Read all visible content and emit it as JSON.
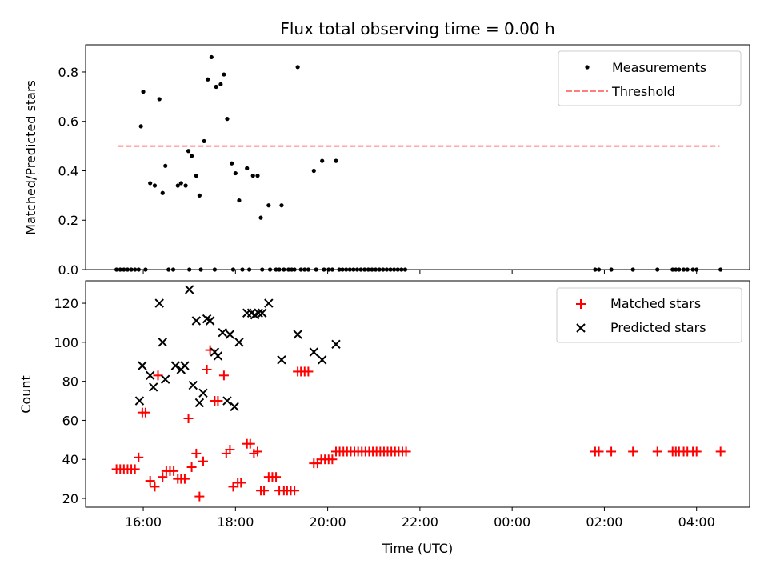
{
  "chart_data": {
    "title": "Flux total observing time = 0.00 h",
    "xlabel": "Time (UTC)",
    "x_ticks": [
      {
        "t": 16.0,
        "label": "16:00"
      },
      {
        "t": 18.0,
        "label": "18:00"
      },
      {
        "t": 20.0,
        "label": "20:00"
      },
      {
        "t": 22.0,
        "label": "22:00"
      },
      {
        "t": 24.0,
        "label": "00:00"
      },
      {
        "t": 26.0,
        "label": "02:00"
      },
      {
        "t": 28.0,
        "label": "04:00"
      }
    ],
    "xlim": [
      14.75,
      29.15
    ],
    "subplots": [
      {
        "type": "scatter",
        "ylabel": "Matched/Predicted stars",
        "ylim": [
          0,
          0.91
        ],
        "y_ticks": [
          0.0,
          0.2,
          0.4,
          0.6,
          0.8
        ],
        "y_tick_labels": [
          "0.0",
          "0.2",
          "0.4",
          "0.6",
          "0.8"
        ],
        "legend": {
          "placement": "upper-right",
          "entries": [
            "Measurements",
            "Threshold"
          ]
        },
        "threshold": {
          "name": "Threshold",
          "value": 0.5,
          "x_range": [
            15.45,
            28.5
          ],
          "color": "#ff7f7f"
        },
        "series": [
          {
            "name": "Measurements",
            "color": "#000000",
            "points": [
              [
                15.95,
                0.58
              ],
              [
                16.0,
                0.72
              ],
              [
                16.15,
                0.35
              ],
              [
                16.25,
                0.34
              ],
              [
                16.35,
                0.69
              ],
              [
                16.42,
                0.31
              ],
              [
                16.48,
                0.42
              ],
              [
                16.75,
                0.34
              ],
              [
                16.82,
                0.35
              ],
              [
                16.92,
                0.34
              ],
              [
                16.98,
                0.48
              ],
              [
                17.05,
                0.46
              ],
              [
                17.15,
                0.38
              ],
              [
                17.22,
                0.3
              ],
              [
                17.32,
                0.52
              ],
              [
                17.4,
                0.77
              ],
              [
                17.48,
                0.86
              ],
              [
                17.58,
                0.74
              ],
              [
                17.68,
                0.75
              ],
              [
                17.75,
                0.79
              ],
              [
                17.82,
                0.61
              ],
              [
                17.92,
                0.43
              ],
              [
                18.0,
                0.39
              ],
              [
                18.08,
                0.28
              ],
              [
                18.25,
                0.41
              ],
              [
                18.38,
                0.38
              ],
              [
                18.48,
                0.38
              ],
              [
                18.55,
                0.21
              ],
              [
                18.72,
                0.26
              ],
              [
                19.0,
                0.26
              ],
              [
                19.35,
                0.82
              ],
              [
                19.7,
                0.4
              ],
              [
                19.88,
                0.44
              ],
              [
                20.18,
                0.44
              ],
              [
                15.42,
                0
              ],
              [
                15.5,
                0
              ],
              [
                15.58,
                0
              ],
              [
                15.66,
                0
              ],
              [
                15.74,
                0
              ],
              [
                15.82,
                0
              ],
              [
                15.9,
                0
              ],
              [
                16.05,
                0
              ],
              [
                16.55,
                0
              ],
              [
                16.65,
                0
              ],
              [
                17.0,
                0
              ],
              [
                17.25,
                0
              ],
              [
                17.55,
                0
              ],
              [
                17.95,
                0
              ],
              [
                18.15,
                0
              ],
              [
                18.3,
                0
              ],
              [
                18.58,
                0
              ],
              [
                18.75,
                0
              ],
              [
                18.88,
                0
              ],
              [
                18.95,
                0
              ],
              [
                19.05,
                0
              ],
              [
                19.15,
                0
              ],
              [
                19.22,
                0
              ],
              [
                19.28,
                0
              ],
              [
                19.42,
                0
              ],
              [
                19.5,
                0
              ],
              [
                19.58,
                0
              ],
              [
                19.75,
                0
              ],
              [
                19.92,
                0
              ],
              [
                20.02,
                0
              ],
              [
                20.1,
                0
              ],
              [
                20.25,
                0
              ],
              [
                20.32,
                0
              ],
              [
                20.4,
                0
              ],
              [
                20.48,
                0
              ],
              [
                20.56,
                0
              ],
              [
                20.64,
                0
              ],
              [
                20.72,
                0
              ],
              [
                20.8,
                0
              ],
              [
                20.88,
                0
              ],
              [
                20.96,
                0
              ],
              [
                21.04,
                0
              ],
              [
                21.12,
                0
              ],
              [
                21.2,
                0
              ],
              [
                21.28,
                0
              ],
              [
                21.36,
                0
              ],
              [
                21.44,
                0
              ],
              [
                21.52,
                0
              ],
              [
                21.6,
                0
              ],
              [
                21.68,
                0
              ],
              [
                25.8,
                0
              ],
              [
                25.88,
                0
              ],
              [
                26.15,
                0
              ],
              [
                26.62,
                0
              ],
              [
                27.15,
                0
              ],
              [
                27.48,
                0
              ],
              [
                27.55,
                0
              ],
              [
                27.62,
                0
              ],
              [
                27.72,
                0
              ],
              [
                27.8,
                0
              ],
              [
                27.92,
                0
              ],
              [
                28.0,
                0
              ],
              [
                28.52,
                0
              ]
            ]
          }
        ]
      },
      {
        "type": "scatter",
        "ylabel": "Count",
        "ylim": [
          15.5,
          131.5
        ],
        "y_ticks": [
          20,
          40,
          60,
          80,
          100,
          120
        ],
        "y_tick_labels": [
          "20",
          "40",
          "60",
          "80",
          "100",
          "120"
        ],
        "legend": {
          "placement": "upper-right",
          "entries": [
            "Matched stars",
            "Predicted stars"
          ]
        },
        "series": [
          {
            "name": "Matched stars",
            "marker": "plus",
            "color": "#ff0000",
            "points": [
              [
                15.42,
                35
              ],
              [
                15.5,
                35
              ],
              [
                15.58,
                35
              ],
              [
                15.66,
                35
              ],
              [
                15.74,
                35
              ],
              [
                15.82,
                35
              ],
              [
                15.9,
                41
              ],
              [
                15.98,
                64
              ],
              [
                16.05,
                64
              ],
              [
                16.15,
                29
              ],
              [
                16.25,
                26
              ],
              [
                16.32,
                83
              ],
              [
                16.42,
                31
              ],
              [
                16.5,
                34
              ],
              [
                16.58,
                34
              ],
              [
                16.66,
                34
              ],
              [
                16.75,
                30
              ],
              [
                16.82,
                30
              ],
              [
                16.9,
                30
              ],
              [
                16.98,
                61
              ],
              [
                17.05,
                36
              ],
              [
                17.15,
                43
              ],
              [
                17.22,
                21
              ],
              [
                17.3,
                39
              ],
              [
                17.38,
                86
              ],
              [
                17.45,
                96
              ],
              [
                17.55,
                70
              ],
              [
                17.62,
                70
              ],
              [
                17.75,
                83
              ],
              [
                17.8,
                43
              ],
              [
                17.88,
                45
              ],
              [
                17.95,
                26
              ],
              [
                18.05,
                28
              ],
              [
                18.12,
                28
              ],
              [
                18.25,
                48
              ],
              [
                18.32,
                48
              ],
              [
                18.4,
                43
              ],
              [
                18.48,
                44
              ],
              [
                18.55,
                24
              ],
              [
                18.62,
                24
              ],
              [
                18.72,
                31
              ],
              [
                18.8,
                31
              ],
              [
                18.88,
                31
              ],
              [
                18.95,
                24
              ],
              [
                19.05,
                24
              ],
              [
                19.12,
                24
              ],
              [
                19.2,
                24
              ],
              [
                19.28,
                24
              ],
              [
                19.35,
                85
              ],
              [
                19.42,
                85
              ],
              [
                19.5,
                85
              ],
              [
                19.58,
                85
              ],
              [
                19.7,
                38
              ],
              [
                19.78,
                38
              ],
              [
                19.86,
                40
              ],
              [
                19.94,
                40
              ],
              [
                20.02,
                40
              ],
              [
                20.1,
                40
              ],
              [
                20.18,
                44
              ],
              [
                20.26,
                44
              ],
              [
                20.34,
                44
              ],
              [
                20.42,
                44
              ],
              [
                20.5,
                44
              ],
              [
                20.58,
                44
              ],
              [
                20.66,
                44
              ],
              [
                20.74,
                44
              ],
              [
                20.82,
                44
              ],
              [
                20.9,
                44
              ],
              [
                20.98,
                44
              ],
              [
                21.06,
                44
              ],
              [
                21.14,
                44
              ],
              [
                21.22,
                44
              ],
              [
                21.3,
                44
              ],
              [
                21.38,
                44
              ],
              [
                21.46,
                44
              ],
              [
                21.54,
                44
              ],
              [
                21.62,
                44
              ],
              [
                21.7,
                44
              ],
              [
                25.8,
                44
              ],
              [
                25.88,
                44
              ],
              [
                26.15,
                44
              ],
              [
                26.62,
                44
              ],
              [
                27.15,
                44
              ],
              [
                27.48,
                44
              ],
              [
                27.55,
                44
              ],
              [
                27.62,
                44
              ],
              [
                27.72,
                44
              ],
              [
                27.8,
                44
              ],
              [
                27.92,
                44
              ],
              [
                28.0,
                44
              ],
              [
                28.52,
                44
              ]
            ]
          },
          {
            "name": "Predicted stars",
            "marker": "x",
            "color": "#000000",
            "points": [
              [
                15.92,
                70
              ],
              [
                15.98,
                88
              ],
              [
                16.15,
                83
              ],
              [
                16.22,
                77
              ],
              [
                16.35,
                120
              ],
              [
                16.42,
                100
              ],
              [
                16.48,
                81
              ],
              [
                16.7,
                88
              ],
              [
                16.82,
                86
              ],
              [
                16.9,
                88
              ],
              [
                17.0,
                127
              ],
              [
                17.08,
                78
              ],
              [
                17.15,
                111
              ],
              [
                17.22,
                69
              ],
              [
                17.3,
                74
              ],
              [
                17.38,
                112
              ],
              [
                17.45,
                111
              ],
              [
                17.55,
                95
              ],
              [
                17.62,
                93
              ],
              [
                17.72,
                105
              ],
              [
                17.82,
                70
              ],
              [
                17.88,
                104
              ],
              [
                17.98,
                67
              ],
              [
                18.08,
                100
              ],
              [
                18.25,
                115
              ],
              [
                18.35,
                115
              ],
              [
                18.42,
                114
              ],
              [
                18.5,
                115
              ],
              [
                18.58,
                115
              ],
              [
                18.72,
                120
              ],
              [
                19.0,
                91
              ],
              [
                19.35,
                104
              ],
              [
                19.7,
                95
              ],
              [
                19.88,
                91
              ],
              [
                20.18,
                99
              ]
            ]
          }
        ]
      }
    ]
  }
}
